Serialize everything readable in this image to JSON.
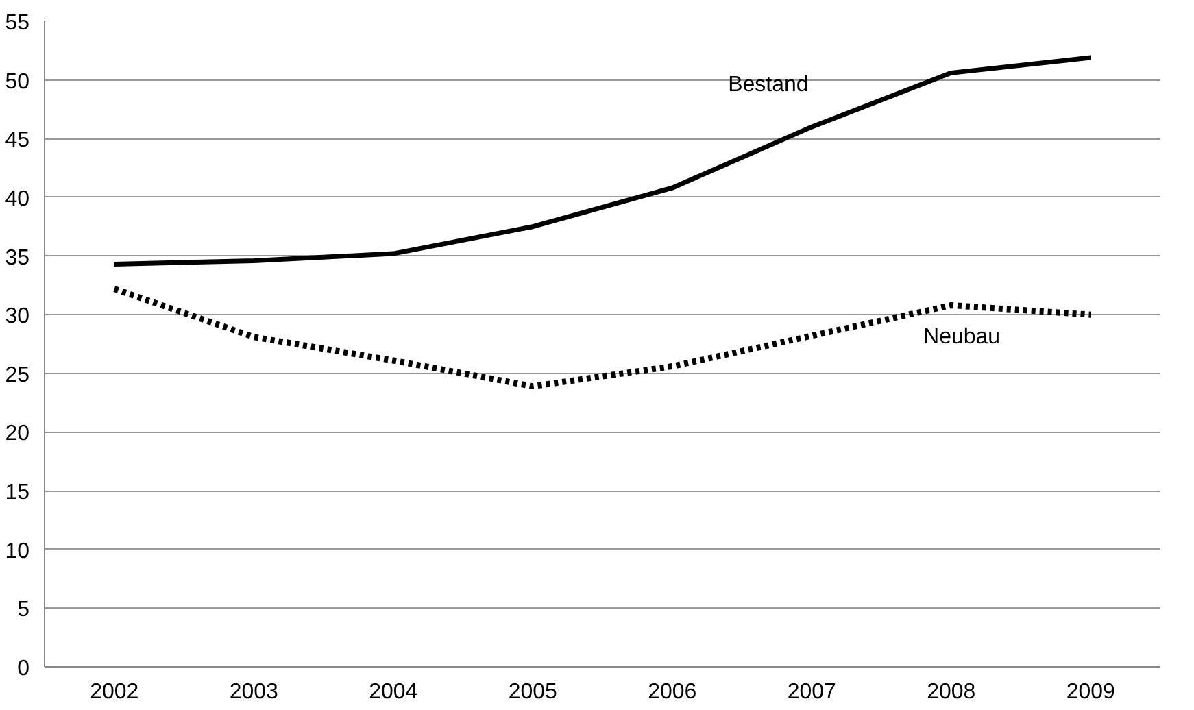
{
  "chart_data": {
    "type": "line",
    "categories": [
      "2002",
      "2003",
      "2004",
      "2005",
      "2006",
      "2007",
      "2008",
      "2009"
    ],
    "series": [
      {
        "name": "Bestand",
        "color": "#000000",
        "line_style": "solid",
        "values": [
          34.3,
          34.6,
          35.2,
          37.5,
          40.8,
          46.0,
          50.6,
          51.9
        ]
      },
      {
        "name": "Neubau",
        "color": "#000000",
        "line_style": "dotted",
        "values": [
          32.2,
          28.1,
          26.1,
          23.9,
          25.6,
          28.2,
          30.8,
          30.0
        ]
      }
    ],
    "ylim": [
      0,
      55
    ],
    "yticks": [
      0,
      5,
      10,
      15,
      20,
      25,
      30,
      35,
      40,
      45,
      50,
      55
    ],
    "grid": "y",
    "marker": "none"
  }
}
